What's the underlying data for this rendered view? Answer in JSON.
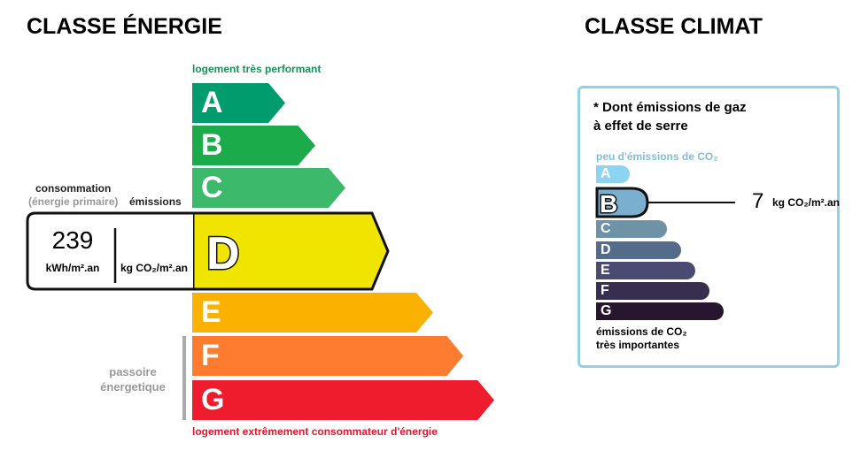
{
  "energie": {
    "title": "CLASSE ÉNERGIE",
    "top_label": "logement très performant",
    "bottom_label": "logement extrêmement consommateur d'énergie",
    "classes": [
      {
        "letter": "A",
        "color": "#009c6d"
      },
      {
        "letter": "B",
        "color": "#1bab4b"
      },
      {
        "letter": "C",
        "color": "#3cb96b"
      },
      {
        "letter": "D",
        "color": "#f0e500"
      },
      {
        "letter": "E",
        "color": "#fbb100"
      },
      {
        "letter": "F",
        "color": "#fd7c2f"
      },
      {
        "letter": "G",
        "color": "#ee1c2c"
      }
    ],
    "current": "D",
    "consommation_label": "consommation",
    "primaire_label": "(énergie primaire)",
    "emissions_label": "émissions",
    "consommation_value": "239",
    "consommation_unit": "kWh/m².an",
    "emissions_unit": "kg CO₂/m².an",
    "passoire_line1": "passoire",
    "passoire_line2": "énergetique"
  },
  "climat": {
    "title": "CLASSE CLIMAT",
    "note_line1": "* Dont émissions de gaz",
    "note_line2": "à effet de serre",
    "top_label": "peu d'émissions de CO₂",
    "bottom_line1": "émissions de CO₂",
    "bottom_line2": "très importantes",
    "classes": [
      {
        "letter": "A",
        "color": "#8dd4f3"
      },
      {
        "letter": "B",
        "color": "#7bafd0"
      },
      {
        "letter": "C",
        "color": "#6e92a6"
      },
      {
        "letter": "D",
        "color": "#556b8a"
      },
      {
        "letter": "E",
        "color": "#4b4a72"
      },
      {
        "letter": "F",
        "color": "#372e50"
      },
      {
        "letter": "G",
        "color": "#27162e"
      }
    ],
    "current": "B",
    "value": "7",
    "unit": "kg CO₂/m².an",
    "border_color": "#8fd3e5"
  }
}
